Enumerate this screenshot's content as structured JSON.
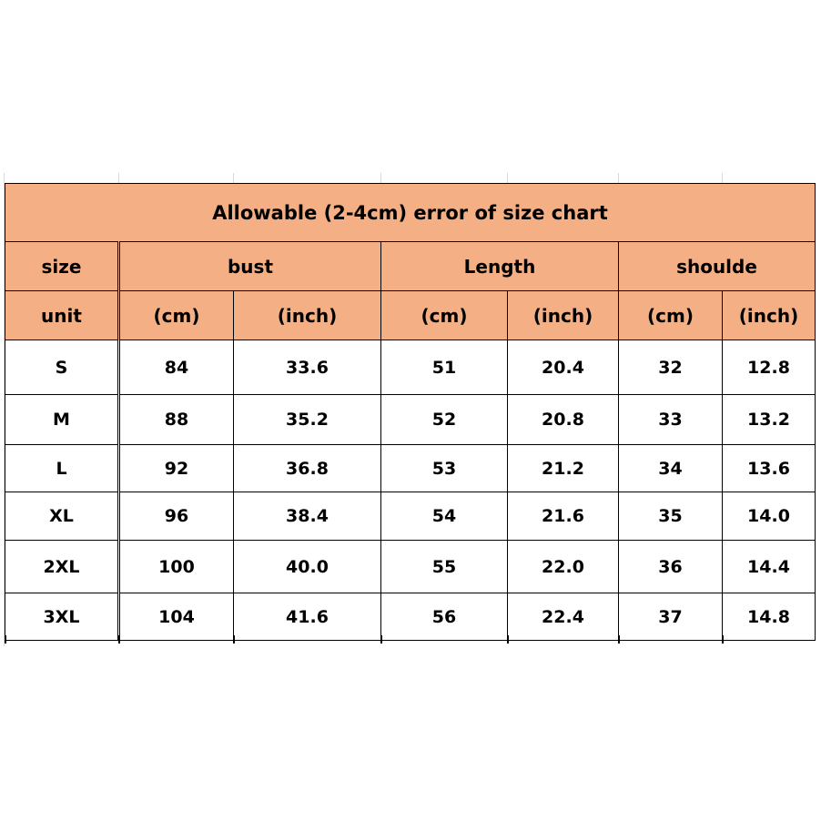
{
  "title": "Allowable (2-4cm) error of size chart",
  "header": {
    "size_label": "size",
    "groups": [
      "bust",
      "Length",
      "shoulde"
    ],
    "unit_label": "unit",
    "units": [
      "(cm)",
      "(inch)",
      "(cm)",
      "(inch)",
      "(cm)",
      "(inch)"
    ]
  },
  "fill_color": "#f4b084",
  "rows": [
    [
      "S",
      "84",
      "33.6",
      "51",
      "20.4",
      "32",
      "12.8"
    ],
    [
      "M",
      "88",
      "35.2",
      "52",
      "20.8",
      "33",
      "13.2"
    ],
    [
      "L",
      "92",
      "36.8",
      "53",
      "21.2",
      "34",
      "13.6"
    ],
    [
      "XL",
      "96",
      "38.4",
      "54",
      "21.6",
      "35",
      "14.0"
    ],
    [
      "2XL",
      "100",
      "40.0",
      "55",
      "22.0",
      "36",
      "14.4"
    ],
    [
      "3XL",
      "104",
      "41.6",
      "56",
      "22.4",
      "37",
      "14.8"
    ]
  ]
}
